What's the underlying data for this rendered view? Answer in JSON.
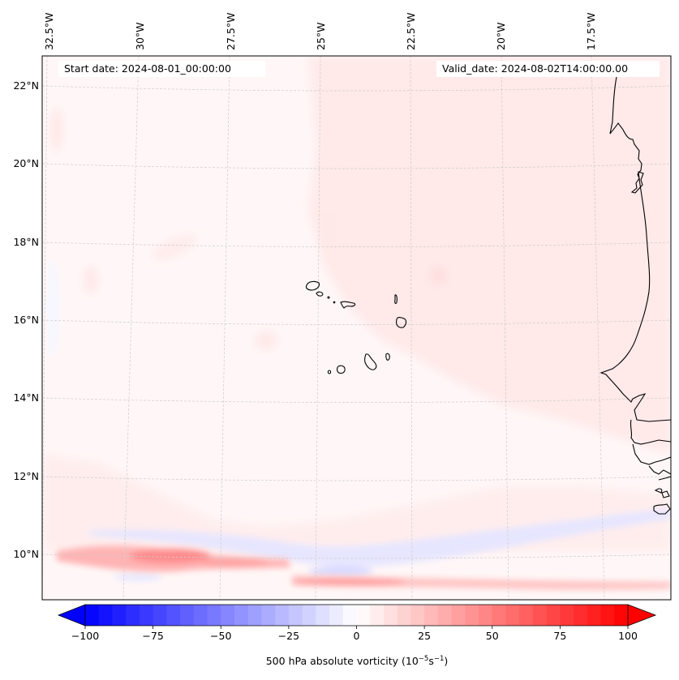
{
  "map": {
    "projection_note": "Lambert-style regional map, West Africa / Cape Verde",
    "header": {
      "start_date": "Start date: 2024-08-01_00:00:00",
      "valid_date": "Valid_date: 2024-08-02T14:00:00.00"
    },
    "lon_labels": [
      "32.5°W",
      "30°W",
      "27.5°W",
      "25°W",
      "22.5°W",
      "20°W",
      "17.5°W"
    ],
    "lat_labels": [
      "22°N",
      "20°N",
      "18°N",
      "16°N",
      "14°N",
      "12°N",
      "10°N"
    ],
    "features": [
      "Cape Verde islands",
      "West African coastline (Mauritania, Senegal, Gambia, Guinea-Bissau, Guinea)"
    ],
    "field": "500 hPa absolute vorticity",
    "field_summary": "Weak positive vorticity (0-10) over most of domain; strong positive band (~30-40) near 10°N west of 25°W and ~9.5°N east of 25°W; weak negative band (~-10 to -20) just north/south of the positive band"
  },
  "colorbar": {
    "label_main": "500 hPa absolute vorticity (10",
    "label_exp1": "−5",
    "label_mid": "s",
    "label_exp2": "−1",
    "label_end": ")",
    "ticks": [
      "−100",
      "−75",
      "−50",
      "−25",
      "0",
      "25",
      "50",
      "75",
      "100"
    ],
    "tick_values": [
      -100,
      -75,
      -50,
      -25,
      0,
      25,
      50,
      75,
      100
    ],
    "range": [
      -100,
      100
    ],
    "step": 5,
    "extend": "both",
    "cmap": "bwr",
    "min_color": "#0000ff",
    "mid_color": "#ffffff",
    "max_color": "#ff0000"
  }
}
